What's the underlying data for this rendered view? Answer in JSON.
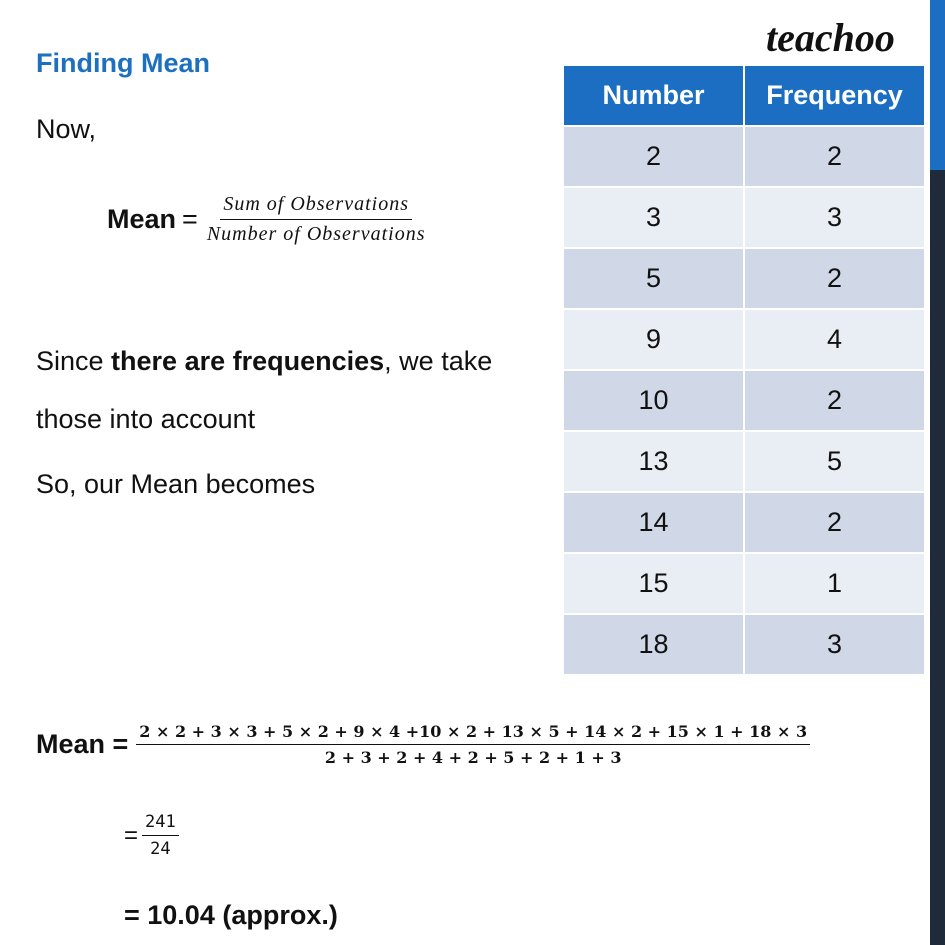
{
  "logo": "teachoo",
  "heading": "Finding Mean",
  "intro": "Now,",
  "formula": {
    "label": "Mean",
    "equals": "=",
    "numerator": "Sum of Observations",
    "denominator": "Number of Observations"
  },
  "frequency_note": {
    "before": "Since ",
    "bold": "there are frequencies",
    "after": ", we take",
    "line2": "those into account"
  },
  "lead_in": "So, our Mean becomes",
  "table": {
    "header": [
      "Number",
      "Frequency"
    ],
    "rows": [
      [
        2,
        2
      ],
      [
        3,
        3
      ],
      [
        5,
        2
      ],
      [
        9,
        4
      ],
      [
        10,
        2
      ],
      [
        13,
        5
      ],
      [
        14,
        2
      ],
      [
        15,
        1
      ],
      [
        18,
        3
      ]
    ]
  },
  "calculation": {
    "label": "Mean =",
    "numerator": "2 × 2 + 3 × 3 + 5 × 2 + 9 × 4 +10 × 2 + 13 × 5 + 14 × 2 + 15 × 1 + 18 × 3",
    "denominator": "2 + 3 + 2 + 4 + 2 + 5 + 2 + 1 + 3",
    "step": {
      "equals": "=",
      "numerator": "241",
      "denominator": "24"
    },
    "result": "= 10.04 (approx.)"
  }
}
